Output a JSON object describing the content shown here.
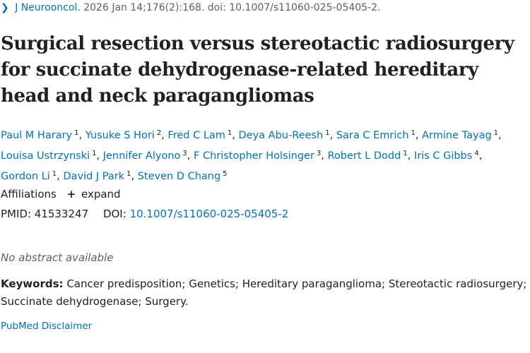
{
  "citation": {
    "journal": "J Neurooncol.",
    "details": "2026 Jan 14;176(2):168. doi: 10.1007/s11060-025-05405-2."
  },
  "title": "Surgical resection versus stereotactic radiosurgery for succinate dehydrogenase-related hereditary head and neck paragangliomas",
  "authors": [
    {
      "name": "Paul M Harary",
      "aff": "1"
    },
    {
      "name": "Yusuke S Hori",
      "aff": "2"
    },
    {
      "name": "Fred C Lam",
      "aff": "1"
    },
    {
      "name": "Deya Abu-Reesh",
      "aff": "1"
    },
    {
      "name": "Sara C Emrich",
      "aff": "1"
    },
    {
      "name": "Armine Tayag",
      "aff": "1"
    },
    {
      "name": "Louisa Ustrzynski",
      "aff": "1"
    },
    {
      "name": "Jennifer Alyono",
      "aff": "3"
    },
    {
      "name": "F Christopher Holsinger",
      "aff": "3"
    },
    {
      "name": "Robert L Dodd",
      "aff": "1"
    },
    {
      "name": "Iris C Gibbs",
      "aff": "4"
    },
    {
      "name": "Gordon Li",
      "aff": "1"
    },
    {
      "name": "David J Park",
      "aff": "1"
    },
    {
      "name": "Steven D Chang",
      "aff": "5"
    }
  ],
  "affiliations": {
    "label": "Affiliations",
    "plus": "+",
    "expand": "expand"
  },
  "ids": {
    "pmid_label": "PMID:",
    "pmid": "41533247",
    "doi_label": "DOI:",
    "doi": "10.1007/s11060-025-05405-2"
  },
  "no_abstract": "No abstract available",
  "keywords": {
    "label": "Keywords:",
    "text": "Cancer predisposition; Genetics; Hereditary paraganglioma; Stereotactic radiosurgery; Succinate dehydrogenase; Surgery."
  },
  "disclaimer": "PubMed Disclaimer",
  "colors": {
    "link": "#0071bc",
    "text": "#212121",
    "muted": "#5b616b"
  }
}
